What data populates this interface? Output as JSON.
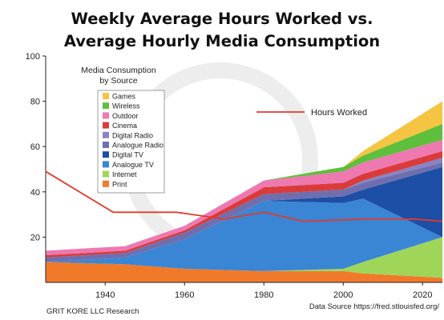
{
  "title_line1": "Weekly Average Hours Worked vs.",
  "title_line2": "Average Hourly Media Consumption",
  "footer_left": "GRIT KORE LLC Research",
  "footer_right": "Data Source https://fred.stlouisfed.org/",
  "chart_data": {
    "type": "area",
    "stacked": true,
    "xlim": [
      1925,
      2025
    ],
    "ylim": [
      0,
      100
    ],
    "x_ticks": [
      1940,
      1960,
      1980,
      2000,
      2020
    ],
    "y_ticks": [
      20,
      40,
      60,
      80,
      100
    ],
    "x": [
      1925,
      1945,
      1960,
      1980,
      2000,
      2005,
      2025
    ],
    "legend_title": "Media Consumption\nby Source",
    "legend_placement": "upper-left",
    "series": [
      {
        "name": "Print",
        "color": "#f07a2a",
        "values": [
          9,
          8,
          6,
          5,
          5,
          4,
          2
        ]
      },
      {
        "name": "Internet",
        "color": "#9fd65a",
        "values": [
          0,
          0,
          0,
          0,
          1,
          5,
          18
        ]
      },
      {
        "name": "Analogue TV",
        "color": "#3a86d4",
        "values": [
          0,
          3,
          13,
          31,
          29,
          28,
          0
        ]
      },
      {
        "name": "Digital TV",
        "color": "#1e4fa6",
        "values": [
          0,
          0,
          0,
          0,
          3,
          4,
          31
        ]
      },
      {
        "name": "Analogue Radio",
        "color": "#6f6fb0",
        "values": [
          2,
          2,
          3,
          3,
          3,
          3,
          2
        ]
      },
      {
        "name": "Digital Radio",
        "color": "#8884c4",
        "values": [
          0,
          0,
          0,
          0,
          0,
          1,
          2
        ]
      },
      {
        "name": "Cinema",
        "color": "#d93b3b",
        "values": [
          1,
          1,
          1,
          3,
          3,
          3,
          3
        ]
      },
      {
        "name": "Outdoor",
        "color": "#ee78b0",
        "values": [
          2,
          2,
          2,
          3,
          5,
          5,
          5
        ]
      },
      {
        "name": "Wireless",
        "color": "#5dbf3c",
        "values": [
          0,
          0,
          0,
          0,
          2,
          3,
          7
        ]
      },
      {
        "name": "Games",
        "color": "#f5c442",
        "values": [
          0,
          0,
          0,
          0,
          0,
          2,
          10
        ]
      }
    ],
    "line": {
      "name": "Hours Worked",
      "color": "#e23a2a",
      "x": [
        1925,
        1942,
        1958,
        1970,
        1980,
        1990,
        2005,
        2018,
        2025
      ],
      "values": [
        49,
        31,
        31,
        28,
        31,
        27,
        28,
        28,
        27
      ]
    }
  }
}
